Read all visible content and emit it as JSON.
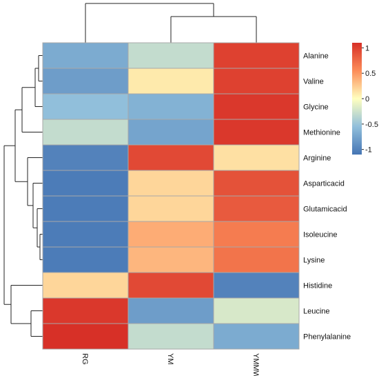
{
  "chart_data": {
    "type": "heatmap",
    "title": "",
    "columns": [
      "RG",
      "YM",
      "YMMW"
    ],
    "rows": [
      "Alanine",
      "Valine",
      "Glycine",
      "Methionine",
      "Arginine",
      "Asparticacid",
      "Glutamicacid",
      "Isoleucine",
      "Lysine",
      "Histidine",
      "Leucine",
      "Phenylalanine"
    ],
    "values": [
      [
        -0.7,
        -0.3,
        1.0
      ],
      [
        -0.8,
        0.1,
        1.0
      ],
      [
        -0.55,
        -0.65,
        1.05
      ],
      [
        -0.3,
        -0.75,
        1.05
      ],
      [
        -1.0,
        0.95,
        0.15
      ],
      [
        -1.05,
        0.2,
        0.9
      ],
      [
        -1.05,
        0.2,
        0.85
      ],
      [
        -1.05,
        0.4,
        0.65
      ],
      [
        -1.05,
        0.35,
        0.7
      ],
      [
        0.2,
        0.95,
        -1.0
      ],
      [
        1.05,
        -0.8,
        -0.2
      ],
      [
        1.1,
        -0.3,
        -0.7
      ]
    ],
    "color_scale": {
      "min": -1.1,
      "max": 1.1,
      "stops": [
        {
          "value": -1.1,
          "color": "#4575b4"
        },
        {
          "value": -0.55,
          "color": "#91bfdb"
        },
        {
          "value": 0.0,
          "color": "#ffffbf"
        },
        {
          "value": 0.55,
          "color": "#fc8d59"
        },
        {
          "value": 1.1,
          "color": "#d73027"
        }
      ],
      "ticks": [
        1,
        0.5,
        0,
        -0.5,
        -1
      ],
      "tick_labels": [
        "1",
        "0.5",
        "0",
        "-0.5",
        "-1"
      ]
    },
    "row_dendrogram": true,
    "column_dendrogram": true,
    "legend_position": "right",
    "grid": false
  }
}
